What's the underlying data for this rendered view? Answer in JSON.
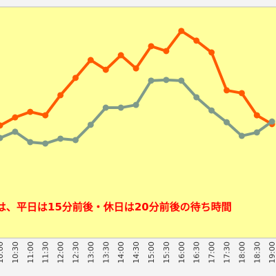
{
  "chart_data": {
    "type": "line",
    "categories": [
      "10:00",
      "10:30",
      "11:00",
      "11:30",
      "12:00",
      "12:30",
      "13:00",
      "13:30",
      "14:00",
      "14:30",
      "15:00",
      "15:30",
      "16:00",
      "16:30",
      "17:00",
      "17:30",
      "18:00",
      "18:30",
      "19:00"
    ],
    "series": [
      {
        "color": "#ff5a00",
        "values": [
          48.7,
          52.2,
          54.6,
          53.1,
          61.8,
          69.3,
          77.0,
          72.8,
          79.1,
          73.4,
          83.0,
          80.9,
          89.6,
          85.4,
          80.3,
          63.9,
          62.7,
          53.1,
          49.3
        ]
      },
      {
        "color": "#7f9a8a",
        "values": [
          43.3,
          46.0,
          41.5,
          40.9,
          43.0,
          42.4,
          49.0,
          56.4,
          56.4,
          57.6,
          68.1,
          68.4,
          68.1,
          60.9,
          55.2,
          50.1,
          44.2,
          45.7,
          50.4
        ]
      }
    ],
    "ylim": [
      0,
      100
    ],
    "annotation": "は、平日は15分前後・休日は20分前後の待ち時間"
  }
}
